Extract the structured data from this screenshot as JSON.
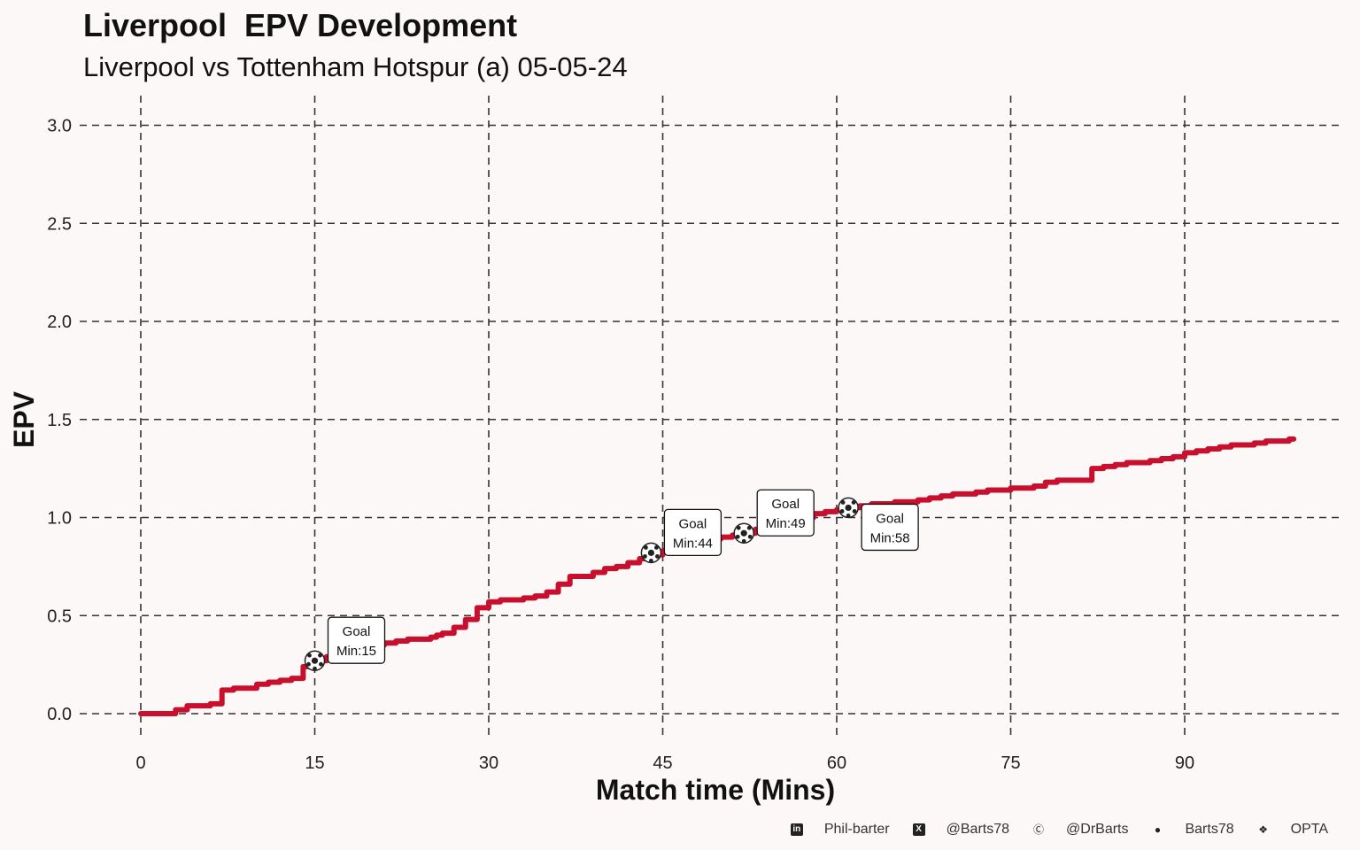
{
  "title": "Liverpool  EPV Development",
  "subtitle": "Liverpool vs Tottenham Hotspur (a) 05-05-24",
  "chart_data": {
    "type": "line",
    "title": "Liverpool  EPV Development",
    "subtitle": "Liverpool vs Tottenham Hotspur (a) 05-05-24",
    "xlabel": "Match time (Mins)",
    "ylabel": "EPV",
    "xlim": [
      0,
      100
    ],
    "ylim": [
      0,
      3.0
    ],
    "x_ticks": [
      0,
      15,
      30,
      45,
      60,
      75,
      90
    ],
    "y_ticks": [
      "0.0",
      "0.5",
      "1.0",
      "1.5",
      "2.0",
      "2.5",
      "3.0"
    ],
    "grid": true,
    "grid_style": "dashed",
    "line_color": "#c8102e",
    "step": true,
    "series": [
      {
        "x": [
          0,
          3,
          4,
          6,
          7,
          8,
          10,
          11,
          12,
          13,
          14,
          15,
          16,
          17,
          18,
          19,
          20,
          21,
          22,
          23,
          24,
          25,
          25.5,
          26,
          27,
          28,
          29,
          30,
          31,
          32,
          33,
          34,
          35,
          36,
          37,
          38,
          39,
          40,
          41,
          42,
          43,
          44,
          45,
          46,
          47,
          48,
          49,
          50,
          51,
          52,
          53,
          54,
          55,
          56,
          57,
          58,
          59,
          60,
          61,
          62,
          63,
          64,
          65,
          66,
          67,
          68,
          69,
          70,
          71,
          72,
          73,
          74,
          75,
          76,
          77,
          78,
          79,
          80,
          81,
          82,
          83,
          84,
          85,
          86,
          87,
          88,
          89,
          90,
          91,
          92,
          93,
          94,
          95,
          96,
          97,
          98,
          99
        ],
        "y": [
          0.0,
          0.02,
          0.04,
          0.05,
          0.12,
          0.13,
          0.15,
          0.16,
          0.17,
          0.18,
          0.24,
          0.27,
          0.29,
          0.3,
          0.32,
          0.34,
          0.35,
          0.36,
          0.37,
          0.38,
          0.38,
          0.39,
          0.4,
          0.41,
          0.44,
          0.48,
          0.54,
          0.57,
          0.58,
          0.58,
          0.59,
          0.6,
          0.62,
          0.66,
          0.7,
          0.7,
          0.72,
          0.74,
          0.75,
          0.77,
          0.79,
          0.81,
          0.83,
          0.85,
          0.87,
          0.88,
          0.89,
          0.9,
          0.91,
          0.92,
          0.94,
          0.96,
          0.98,
          0.99,
          1.0,
          1.02,
          1.03,
          1.04,
          1.05,
          1.06,
          1.07,
          1.07,
          1.08,
          1.08,
          1.09,
          1.1,
          1.11,
          1.12,
          1.12,
          1.13,
          1.14,
          1.14,
          1.15,
          1.15,
          1.16,
          1.18,
          1.19,
          1.19,
          1.19,
          1.25,
          1.26,
          1.27,
          1.28,
          1.28,
          1.29,
          1.3,
          1.31,
          1.33,
          1.34,
          1.35,
          1.36,
          1.37,
          1.37,
          1.38,
          1.39,
          1.39,
          1.4
        ]
      }
    ],
    "annotations": [
      {
        "x": 15,
        "y": 0.27,
        "line1": "Goal",
        "line2": "Min:15",
        "label_pos": "right"
      },
      {
        "x": 44,
        "y": 0.82,
        "line1": "Goal",
        "line2": "Min:44",
        "label_pos": "right"
      },
      {
        "x": 52,
        "y": 0.92,
        "line1": "Goal",
        "line2": "Min:49",
        "label_pos": "right"
      },
      {
        "x": 61,
        "y": 1.05,
        "line1": "Goal",
        "line2": "Min:58",
        "label_pos": "right-below"
      }
    ]
  },
  "footer": [
    {
      "icon": "linkedin-icon",
      "text": "Phil-barter"
    },
    {
      "icon": "x-twitter-icon",
      "text": "@Barts78"
    },
    {
      "icon": "mastodon-icon",
      "text": "@DrBarts"
    },
    {
      "icon": "github-icon",
      "text": "Barts78"
    },
    {
      "icon": "dropbox-icon",
      "text": "OPTA"
    }
  ]
}
